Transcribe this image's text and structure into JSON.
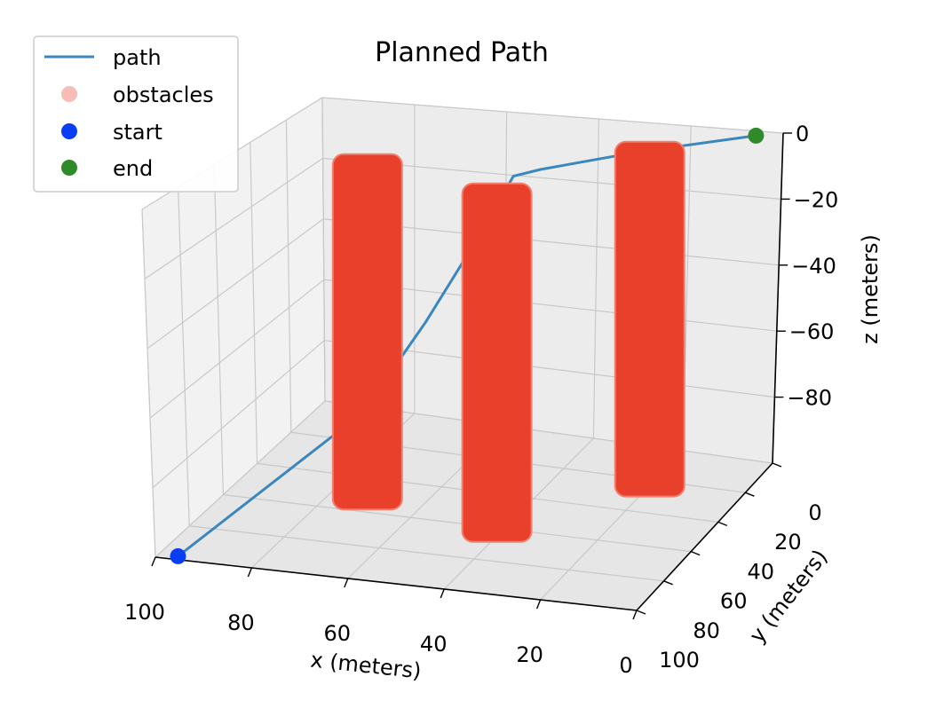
{
  "chart_data": {
    "type": "3d-line-scatter",
    "title": "Planned Path",
    "xlabel": "x (meters)",
    "ylabel": "y (meters)",
    "zlabel": "z (meters)",
    "xlim": [
      0,
      100
    ],
    "ylim": [
      0,
      100
    ],
    "zlim": [
      -100,
      0
    ],
    "x_ticks": [
      "100",
      "80",
      "60",
      "40",
      "20",
      "0"
    ],
    "y_ticks": [
      "0",
      "20",
      "40",
      "60",
      "80",
      "100"
    ],
    "z_ticks": [
      "0",
      "−20",
      "−40",
      "−60",
      "−80"
    ],
    "grid": true,
    "legend_position": "top-left",
    "series": [
      {
        "name": "path",
        "kind": "line",
        "color": "#3a87c0"
      },
      {
        "name": "obstacles",
        "kind": "marker",
        "color": "#e8402a"
      },
      {
        "name": "start",
        "kind": "marker",
        "color": "#0a3ef5"
      },
      {
        "name": "end",
        "kind": "marker",
        "color": "#2f8a2a"
      }
    ],
    "path": [
      {
        "x": 96,
        "y": 98,
        "z": -100
      },
      {
        "x": 70,
        "y": 60,
        "z": -70
      },
      {
        "x": 60,
        "y": 50,
        "z": -45
      },
      {
        "x": 50,
        "y": 45,
        "z": -18
      },
      {
        "x": 45,
        "y": 40,
        "z": -2
      },
      {
        "x": 40,
        "y": 38,
        "z": 0
      },
      {
        "x": 25,
        "y": 20,
        "z": 0
      },
      {
        "x": 5,
        "y": 3,
        "z": 0
      }
    ],
    "start": {
      "x": 96,
      "y": 98,
      "z": -100
    },
    "end": {
      "x": 5,
      "y": 3,
      "z": 0
    },
    "obstacles": [
      {
        "x": 72,
        "y": 50,
        "z_range": [
          -100,
          0
        ]
      },
      {
        "x": 42,
        "y": 60,
        "z_range": [
          -100,
          0
        ]
      },
      {
        "x": 22,
        "y": 22,
        "z_range": [
          -100,
          0
        ]
      }
    ]
  }
}
